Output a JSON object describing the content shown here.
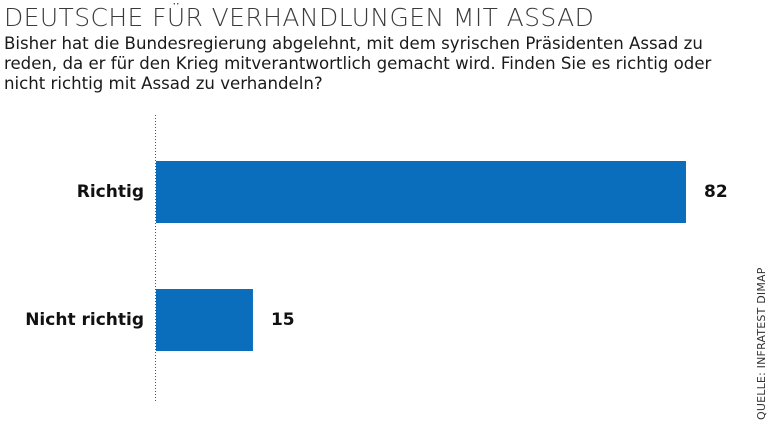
{
  "title": "DEUTSCHE FÜR VERHANDLUNGEN MIT ASSAD",
  "subtitle": "Bisher hat die Bundesregierung abgelehnt, mit dem syrischen Präsidenten Assad zu reden, da er für den Krieg mitverantwortlich gemacht wird. Finden Sie es richtig oder nicht richtig mit Assad zu verhandeln?",
  "source": "QUELLE: INFRATEST DIMAP",
  "colors": {
    "bar": "#0a6ebd",
    "axis": "#555555"
  },
  "chart_data": {
    "type": "bar",
    "orientation": "horizontal",
    "categories": [
      "Richtig",
      "Nicht richtig"
    ],
    "values": [
      82,
      15
    ],
    "xlim": [
      0,
      82
    ],
    "grid": false
  }
}
